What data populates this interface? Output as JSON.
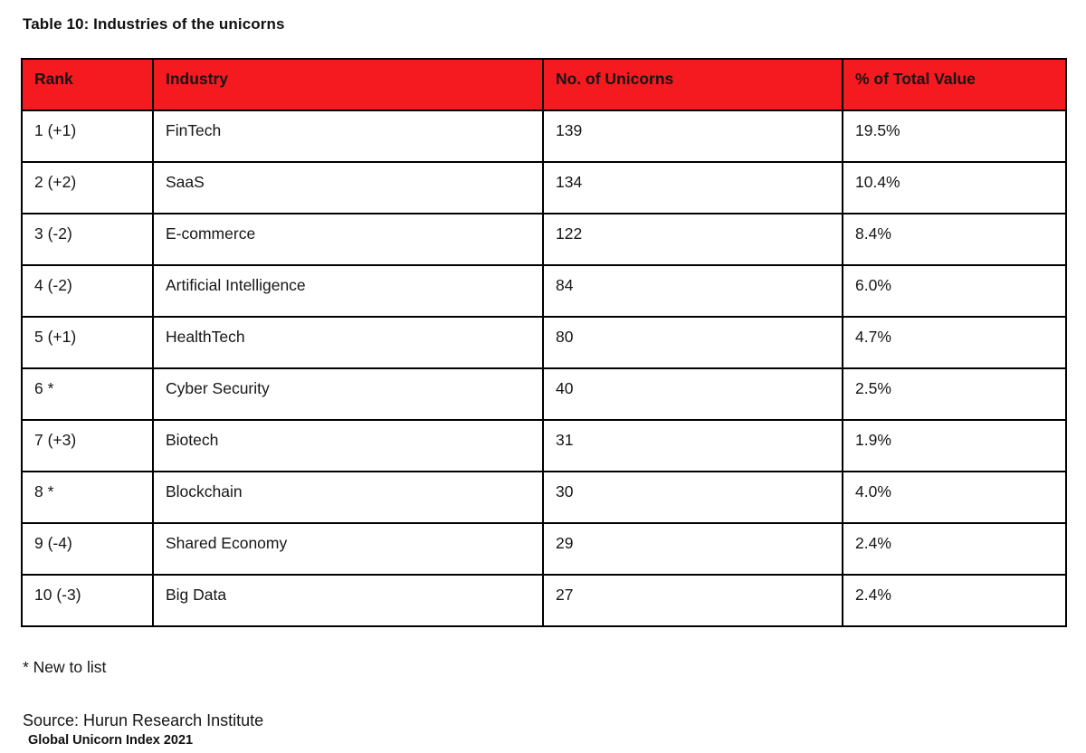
{
  "title": "Table 10: Industries of the unicorns",
  "table": {
    "headers": {
      "rank": "Rank",
      "industry": "Industry",
      "unicorns": "No. of Unicorns",
      "pct": "% of Total Value"
    },
    "rows": [
      {
        "rank": "1 (+1)",
        "industry": "FinTech",
        "unicorns": "139",
        "pct": "19.5%"
      },
      {
        "rank": "2 (+2)",
        "industry": "SaaS",
        "unicorns": "134",
        "pct": "10.4%"
      },
      {
        "rank": "3 (-2)",
        "industry": "E-commerce",
        "unicorns": "122",
        "pct": "8.4%"
      },
      {
        "rank": "4 (-2)",
        "industry": "Artificial Intelligence",
        "unicorns": "84",
        "pct": "6.0%"
      },
      {
        "rank": "5 (+1)",
        "industry": "HealthTech",
        "unicorns": "80",
        "pct": "4.7%"
      },
      {
        "rank": "6 *",
        "industry": "Cyber Security",
        "unicorns": "40",
        "pct": "2.5%"
      },
      {
        "rank": "7 (+3)",
        "industry": "Biotech",
        "unicorns": "31",
        "pct": "1.9%"
      },
      {
        "rank": "8 *",
        "industry": "Blockchain",
        "unicorns": "30",
        "pct": "4.0%"
      },
      {
        "rank": "9 (-4)",
        "industry": "Shared Economy",
        "unicorns": "29",
        "pct": "2.4%"
      },
      {
        "rank": "10 (-3)",
        "industry": "Big Data",
        "unicorns": "27",
        "pct": "2.4%"
      }
    ]
  },
  "chart_data": {
    "type": "table",
    "title": "Table 10: Industries of the unicorns",
    "columns": [
      "Rank",
      "Industry",
      "No. of Unicorns",
      "% of Total Value"
    ],
    "rows": [
      [
        "1 (+1)",
        "FinTech",
        139,
        "19.5%"
      ],
      [
        "2 (+2)",
        "SaaS",
        134,
        "10.4%"
      ],
      [
        "3 (-2)",
        "E-commerce",
        122,
        "8.4%"
      ],
      [
        "4 (-2)",
        "Artificial Intelligence",
        84,
        "6.0%"
      ],
      [
        "5 (+1)",
        "HealthTech",
        80,
        "4.7%"
      ],
      [
        "6 *",
        "Cyber Security",
        40,
        "2.5%"
      ],
      [
        "7 (+3)",
        "Biotech",
        31,
        "1.9%"
      ],
      [
        "8 *",
        "Blockchain",
        30,
        "4.0%"
      ],
      [
        "9 (-4)",
        "Shared Economy",
        29,
        "2.4%"
      ],
      [
        "10 (-3)",
        "Big Data",
        27,
        "2.4%"
      ]
    ]
  },
  "footnote": "* New to list",
  "source": "Source: Hurun Research Institute",
  "index_label": "Global Unicorn Index 2021",
  "colors": {
    "header_bg": "#f51a20",
    "border": "#000000",
    "text": "#161616"
  }
}
